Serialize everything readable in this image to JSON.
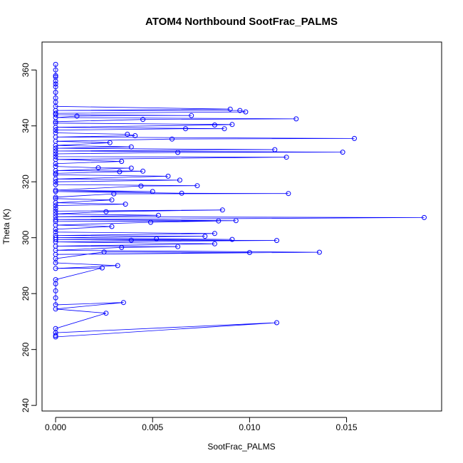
{
  "chart_data": {
    "type": "scatter",
    "title": "ATOM4 Northbound SootFrac_PALMS",
    "xlabel": "SootFrac_PALMS",
    "ylabel": "Theta (K)",
    "xlim": [
      -0.0007,
      0.0199
    ],
    "ylim": [
      238,
      370
    ],
    "x_ticks": [
      0.0,
      0.005,
      0.01,
      0.015
    ],
    "x_tick_labels": [
      "0.000",
      "0.005",
      "0.010",
      "0.015"
    ],
    "y_ticks": [
      240,
      260,
      280,
      300,
      320,
      340,
      360
    ],
    "y_tick_labels": [
      "240",
      "260",
      "280",
      "300",
      "320",
      "340",
      "360"
    ],
    "grid": false,
    "legend": "none",
    "series": [
      {
        "style": "line+open-circle",
        "color": "#0000ff",
        "points": [
          [
            0.0,
            264.5
          ],
          [
            0.0114,
            269.6
          ],
          [
            0.0,
            266.0
          ],
          [
            0.0,
            265.0
          ],
          [
            0.0,
            267.5
          ],
          [
            0.0026,
            273.0
          ],
          [
            0.0,
            274.5
          ],
          [
            0.0035,
            276.8
          ],
          [
            0.0,
            276.0
          ],
          [
            0.0,
            278.5
          ],
          [
            0.0,
            281.0
          ],
          [
            0.0,
            283.5
          ],
          [
            0.0,
            285.0
          ],
          [
            0.0024,
            289.2
          ],
          [
            0.0,
            289.0
          ],
          [
            0.0032,
            290.0
          ],
          [
            0.0,
            291.0
          ],
          [
            0.0,
            292.5
          ],
          [
            0.0025,
            294.9
          ],
          [
            0.01,
            294.7
          ],
          [
            0.0,
            294.0
          ],
          [
            0.0136,
            294.8
          ],
          [
            0.0,
            295.5
          ],
          [
            0.0034,
            296.5
          ],
          [
            0.0063,
            296.8
          ],
          [
            0.0,
            297.0
          ],
          [
            0.0082,
            297.8
          ],
          [
            0.0,
            298.5
          ],
          [
            0.0114,
            299.0
          ],
          [
            0.0039,
            299.1
          ],
          [
            0.0,
            299.3
          ],
          [
            0.0091,
            299.4
          ],
          [
            0.0052,
            299.6
          ],
          [
            0.0,
            300.0
          ],
          [
            0.0077,
            300.5
          ],
          [
            0.0,
            300.8
          ],
          [
            0.0082,
            301.5
          ],
          [
            0.0,
            302.0
          ],
          [
            0.0,
            303.0
          ],
          [
            0.0029,
            304.0
          ],
          [
            0.0,
            304.5
          ],
          [
            0.0049,
            305.5
          ],
          [
            0.0084,
            306.0
          ],
          [
            0.0,
            305.8
          ],
          [
            0.0093,
            306.1
          ],
          [
            0.0,
            306.5
          ],
          [
            0.019,
            307.2
          ],
          [
            0.0,
            307.5
          ],
          [
            0.0053,
            308.0
          ],
          [
            0.0,
            308.5
          ],
          [
            0.0026,
            309.3
          ],
          [
            0.0086,
            309.9
          ],
          [
            0.0,
            309.5
          ],
          [
            0.0,
            310.5
          ],
          [
            0.0,
            311.5
          ],
          [
            0.0036,
            312.0
          ],
          [
            0.0,
            312.5
          ],
          [
            0.0029,
            313.5
          ],
          [
            0.0,
            314.0
          ],
          [
            0.0,
            314.5
          ],
          [
            0.003,
            315.7
          ],
          [
            0.012,
            315.8
          ],
          [
            0.0065,
            315.9
          ],
          [
            0.0,
            316.5
          ],
          [
            0.005,
            316.5
          ],
          [
            0.0,
            317.0
          ],
          [
            0.0044,
            318.5
          ],
          [
            0.0073,
            318.6
          ],
          [
            0.0,
            319.0
          ],
          [
            0.0,
            320.0
          ],
          [
            0.0064,
            320.6
          ],
          [
            0.0,
            321.0
          ],
          [
            0.0058,
            322.0
          ],
          [
            0.0,
            322.5
          ],
          [
            0.0,
            323.0
          ],
          [
            0.0033,
            323.6
          ],
          [
            0.0045,
            323.8
          ],
          [
            0.0,
            324.0
          ],
          [
            0.0039,
            324.9
          ],
          [
            0.0022,
            325.0
          ],
          [
            0.0,
            325.5
          ],
          [
            0.0,
            326.5
          ],
          [
            0.0034,
            327.3
          ],
          [
            0.0,
            328.0
          ],
          [
            0.0119,
            328.8
          ],
          [
            0.0,
            329.0
          ],
          [
            0.0,
            330.0
          ],
          [
            0.0063,
            330.5
          ],
          [
            0.0148,
            330.6
          ],
          [
            0.0,
            331.0
          ],
          [
            0.0113,
            331.5
          ],
          [
            0.0,
            332.0
          ],
          [
            0.0039,
            332.5
          ],
          [
            0.0,
            333.0
          ],
          [
            0.0028,
            334.0
          ],
          [
            0.0,
            334.5
          ],
          [
            0.006,
            335.3
          ],
          [
            0.0154,
            335.5
          ],
          [
            0.0,
            336.0
          ],
          [
            0.0041,
            336.5
          ],
          [
            0.0037,
            337.0
          ],
          [
            0.0,
            337.5
          ],
          [
            0.0,
            338.5
          ],
          [
            0.0067,
            339.0
          ],
          [
            0.0087,
            339.0
          ],
          [
            0.0,
            339.5
          ],
          [
            0.0082,
            340.3
          ],
          [
            0.0091,
            340.5
          ],
          [
            0.0,
            341.0
          ],
          [
            0.0,
            341.5
          ],
          [
            0.0045,
            342.3
          ],
          [
            0.0124,
            342.5
          ],
          [
            0.0,
            343.0
          ],
          [
            0.0011,
            343.5
          ],
          [
            0.007,
            343.7
          ],
          [
            0.0,
            344.0
          ],
          [
            0.0,
            344.5
          ],
          [
            0.0098,
            345.0
          ],
          [
            0.0095,
            345.5
          ],
          [
            0.0,
            345.5
          ],
          [
            0.009,
            346.0
          ],
          [
            0.0,
            347.0
          ],
          [
            0.0,
            348.5
          ],
          [
            0.0,
            350.0
          ],
          [
            0.0,
            352.0
          ],
          [
            0.0,
            354.0
          ],
          [
            0.0,
            355.0
          ],
          [
            0.0,
            356.0
          ],
          [
            0.0,
            357.5
          ],
          [
            0.0,
            358.0
          ],
          [
            0.0,
            360.0
          ],
          [
            0.0,
            362.0
          ]
        ]
      }
    ]
  }
}
